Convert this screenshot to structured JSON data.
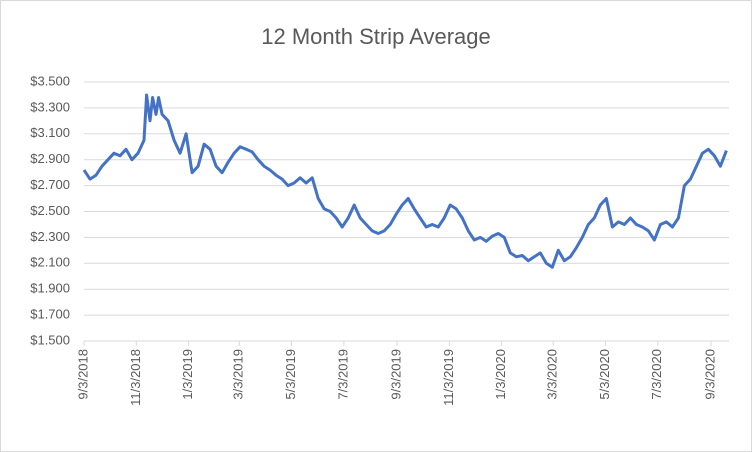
{
  "chart_data": {
    "type": "line",
    "title": "12 Month Strip Average",
    "x": [
      "9/3/2018",
      "9/10/2018",
      "9/17/2018",
      "9/24/2018",
      "10/1/2018",
      "10/8/2018",
      "10/15/2018",
      "10/22/2018",
      "10/29/2018",
      "11/5/2018",
      "11/12/2018",
      "11/15/2018",
      "11/19/2018",
      "11/22/2018",
      "11/26/2018",
      "11/29/2018",
      "12/3/2018",
      "12/10/2018",
      "12/17/2018",
      "12/24/2018",
      "12/31/2018",
      "1/7/2019",
      "1/14/2019",
      "1/21/2019",
      "1/28/2019",
      "2/4/2019",
      "2/11/2019",
      "2/18/2019",
      "2/25/2019",
      "3/4/2019",
      "3/11/2019",
      "3/18/2019",
      "3/25/2019",
      "4/1/2019",
      "4/8/2019",
      "4/15/2019",
      "4/22/2019",
      "4/29/2019",
      "5/6/2019",
      "5/13/2019",
      "5/20/2019",
      "5/27/2019",
      "6/3/2019",
      "6/10/2019",
      "6/17/2019",
      "6/24/2019",
      "7/1/2019",
      "7/8/2019",
      "7/15/2019",
      "7/22/2019",
      "7/29/2019",
      "8/5/2019",
      "8/12/2019",
      "8/19/2019",
      "8/26/2019",
      "9/2/2019",
      "9/9/2019",
      "9/16/2019",
      "9/23/2019",
      "9/30/2019",
      "10/7/2019",
      "10/14/2019",
      "10/21/2019",
      "10/28/2019",
      "11/4/2019",
      "11/11/2019",
      "11/18/2019",
      "11/25/2019",
      "12/2/2019",
      "12/9/2019",
      "12/16/2019",
      "12/23/2019",
      "12/30/2019",
      "1/6/2020",
      "1/13/2020",
      "1/20/2020",
      "1/27/2020",
      "2/3/2020",
      "2/10/2020",
      "2/17/2020",
      "2/24/2020",
      "3/2/2020",
      "3/9/2020",
      "3/16/2020",
      "3/23/2020",
      "3/30/2020",
      "4/6/2020",
      "4/13/2020",
      "4/20/2020",
      "4/27/2020",
      "5/4/2020",
      "5/11/2020",
      "5/18/2020",
      "5/25/2020",
      "6/1/2020",
      "6/8/2020",
      "6/15/2020",
      "6/22/2020",
      "6/29/2020",
      "7/6/2020",
      "7/13/2020",
      "7/20/2020",
      "7/27/2020",
      "8/3/2020",
      "8/10/2020",
      "8/17/2020",
      "8/24/2020",
      "8/31/2020",
      "9/7/2020",
      "9/14/2020",
      "9/21/2020"
    ],
    "series": [
      {
        "name": "12 Month Strip Average",
        "color": "#4472c4",
        "values": [
          2.82,
          2.75,
          2.78,
          2.85,
          2.9,
          2.95,
          2.93,
          2.98,
          2.9,
          2.95,
          3.05,
          3.4,
          3.2,
          3.38,
          3.25,
          3.38,
          3.25,
          3.2,
          3.05,
          2.95,
          3.1,
          2.8,
          2.85,
          3.02,
          2.98,
          2.85,
          2.8,
          2.88,
          2.95,
          3.0,
          2.98,
          2.96,
          2.9,
          2.85,
          2.82,
          2.78,
          2.75,
          2.7,
          2.72,
          2.76,
          2.72,
          2.76,
          2.6,
          2.52,
          2.5,
          2.45,
          2.38,
          2.45,
          2.55,
          2.45,
          2.4,
          2.35,
          2.33,
          2.35,
          2.4,
          2.48,
          2.55,
          2.6,
          2.52,
          2.45,
          2.38,
          2.4,
          2.38,
          2.45,
          2.55,
          2.52,
          2.45,
          2.35,
          2.28,
          2.3,
          2.27,
          2.31,
          2.33,
          2.3,
          2.18,
          2.15,
          2.16,
          2.12,
          2.15,
          2.18,
          2.1,
          2.07,
          2.2,
          2.12,
          2.15,
          2.22,
          2.3,
          2.4,
          2.45,
          2.55,
          2.6,
          2.38,
          2.42,
          2.4,
          2.45,
          2.4,
          2.38,
          2.35,
          2.28,
          2.4,
          2.42,
          2.38,
          2.45,
          2.7,
          2.75,
          2.85,
          2.95,
          2.98,
          2.93,
          2.85,
          2.97
        ]
      }
    ],
    "xlim": [
      "9/3/2018",
      "9/24/2020"
    ],
    "xticks": [
      "9/3/2018",
      "11/3/2018",
      "1/3/2019",
      "3/3/2019",
      "5/3/2019",
      "7/3/2019",
      "9/3/2019",
      "11/3/2019",
      "1/3/2020",
      "3/3/2020",
      "5/3/2020",
      "7/3/2020",
      "9/3/2020"
    ],
    "ylim": [
      1.5,
      3.5
    ],
    "yticks": [
      {
        "value": 1.5,
        "label": "$1.500"
      },
      {
        "value": 1.7,
        "label": "$1.700"
      },
      {
        "value": 1.9,
        "label": "$1.900"
      },
      {
        "value": 2.1,
        "label": "$2.100"
      },
      {
        "value": 2.3,
        "label": "$2.300"
      },
      {
        "value": 2.5,
        "label": "$2.500"
      },
      {
        "value": 2.7,
        "label": "$2.700"
      },
      {
        "value": 2.9,
        "label": "$2.900"
      },
      {
        "value": 3.1,
        "label": "$3.100"
      },
      {
        "value": 3.3,
        "label": "$3.300"
      },
      {
        "value": 3.5,
        "label": "$3.500"
      }
    ],
    "grid": true
  }
}
